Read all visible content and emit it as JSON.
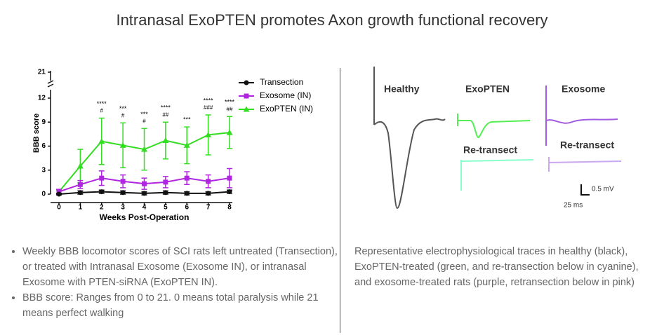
{
  "title": "Intranasal ExoPTEN promotes Axon growth functional recovery",
  "chart_data": {
    "type": "line",
    "xlabel": "Weeks Post-Operation",
    "ylabel": "BBB score",
    "x": [
      0,
      1,
      2,
      3,
      4,
      5,
      6,
      7,
      8
    ],
    "xlim": [
      0,
      8
    ],
    "xticks": [
      0,
      1,
      2,
      3,
      4,
      5,
      6,
      7,
      8
    ],
    "ylim": [
      0,
      21
    ],
    "yticks": [
      0,
      3,
      6,
      9,
      12,
      21
    ],
    "axis_break": [
      12,
      21
    ],
    "legend": "top-right",
    "series": [
      {
        "name": "Transection",
        "color": "#111111",
        "marker": "circle",
        "values": [
          0,
          0.2,
          0.3,
          0.2,
          0.1,
          0.2,
          0.1,
          0.1,
          0.3
        ],
        "errors": [
          0.1,
          0.2,
          0.2,
          0.2,
          0.2,
          0.2,
          0.2,
          0.2,
          0.2
        ]
      },
      {
        "name": "Exosome (IN)",
        "color": "#b026e0",
        "marker": "square",
        "values": [
          0.3,
          1.2,
          2.0,
          1.6,
          1.3,
          1.5,
          2.0,
          1.6,
          2.0
        ],
        "errors": [
          0.3,
          0.5,
          0.9,
          0.8,
          0.7,
          0.7,
          0.8,
          0.8,
          1.2
        ]
      },
      {
        "name": "ExoPTEN (IN)",
        "color": "#33dd22",
        "marker": "triangle",
        "values": [
          0.3,
          3.5,
          6.6,
          6.1,
          5.6,
          6.7,
          6.1,
          7.4,
          7.7
        ],
        "errors": [
          0.2,
          2.1,
          2.9,
          2.8,
          2.6,
          2.3,
          2.3,
          2.5,
          2.0
        ]
      }
    ],
    "annotations": [
      {
        "x": 2,
        "stars": "****",
        "hash": "#"
      },
      {
        "x": 3,
        "stars": "***",
        "hash": "#"
      },
      {
        "x": 4,
        "stars": "***",
        "hash": "#"
      },
      {
        "x": 5,
        "stars": "****",
        "hash": "##"
      },
      {
        "x": 6,
        "stars": "***"
      },
      {
        "x": 7,
        "stars": "****",
        "hash": "###"
      },
      {
        "x": 8,
        "stars": "****",
        "hash": "##"
      }
    ]
  },
  "bullets": [
    "Weekly BBB locomotor scores of SCI rats left untreated (Transection), or treated with Intranasal Exosome (Exosome IN), or intranasal Exosome with PTEN-siRNA (ExoPTEN IN).",
    "BBB score: Ranges from 0 to 21. 0 means total paralysis while 21 means perfect walking"
  ],
  "traces": {
    "labels": [
      "Healthy",
      "ExoPTEN",
      "Exosome",
      "Re-transect",
      "Re-transect"
    ],
    "scale_voltage": "0.5 mV",
    "scale_time": "25 ms"
  },
  "caption": "Representative electrophysiological traces in healthy (black), ExoPTEN-treated (green, and re-transection below in cyanine), and exosome-treated rats (purple, retransection below in pink)"
}
